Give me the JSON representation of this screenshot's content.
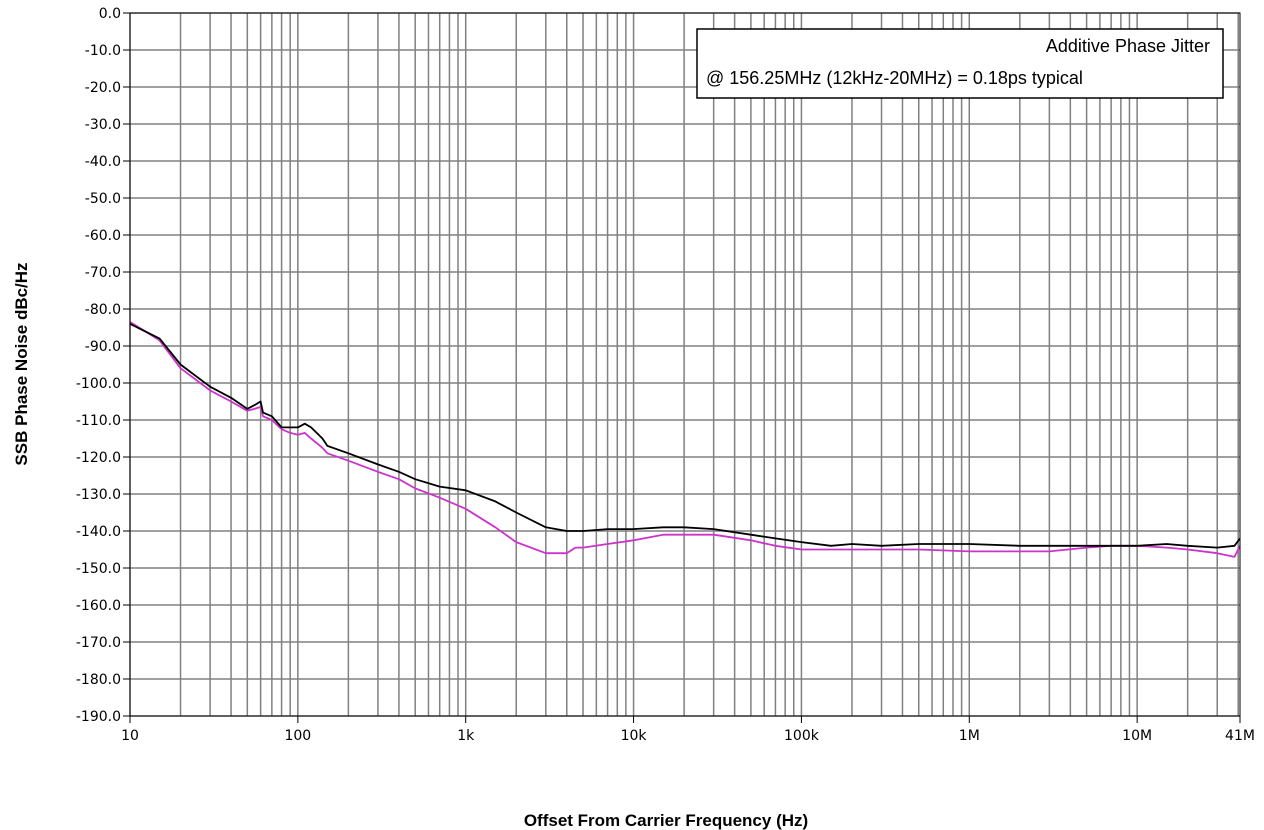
{
  "chart_data": {
    "type": "line",
    "title": "",
    "xlabel": "Offset From Carrier Frequency (Hz)",
    "ylabel": "SSB Phase Noise dBc/Hz",
    "x_scale": "log",
    "xlim": [
      10,
      41000000
    ],
    "ylim": [
      -190,
      0
    ],
    "y_ticks": [
      0,
      -10,
      -20,
      -30,
      -40,
      -50,
      -60,
      -70,
      -80,
      -90,
      -100,
      -110,
      -120,
      -130,
      -140,
      -150,
      -160,
      -170,
      -180,
      -190
    ],
    "y_tick_labels": [
      "0.0",
      "-10.0",
      "-20.0",
      "-30.0",
      "-40.0",
      "-50.0",
      "-60.0",
      "-70.0",
      "-80.0",
      "-90.0",
      "-100.0",
      "-110.0",
      "-120.0",
      "-130.0",
      "-140.0",
      "-150.0",
      "-160.0",
      "-170.0",
      "-180.0",
      "-190.0"
    ],
    "x_ticks": [
      10,
      100,
      1000,
      10000,
      100000,
      1000000,
      10000000,
      41000000
    ],
    "x_tick_labels": [
      "10",
      "100",
      "1k",
      "10k",
      "100k",
      "1M",
      "10M",
      "41M"
    ],
    "grid": true,
    "annotation": {
      "line1": "Additive Phase Jitter",
      "line2": "@ 156.25MHz (12kHz-20MHz) = 0.18ps typical"
    },
    "series": [
      {
        "color": "#000000",
        "x": [
          10,
          15,
          20,
          30,
          40,
          50,
          55,
          60,
          62,
          70,
          80,
          90,
          100,
          110,
          120,
          140,
          150,
          200,
          300,
          400,
          500,
          700,
          1000,
          1500,
          2000,
          3000,
          4000,
          5000,
          7000,
          10000,
          15000,
          20000,
          30000,
          50000,
          70000,
          100000,
          150000,
          200000,
          300000,
          500000,
          1000000,
          2000000,
          3000000,
          5000000,
          7000000,
          10000000,
          15000000,
          20000000,
          30000000,
          38000000,
          41000000
        ],
        "values": [
          -84,
          -88,
          -95,
          -101,
          -104,
          -107,
          -106,
          -105,
          -108,
          -109,
          -112,
          -112,
          -112,
          -111,
          -112,
          -115,
          -117,
          -119,
          -122,
          -124,
          -126,
          -128,
          -129,
          -132,
          -135,
          -139,
          -140,
          -140,
          -139.5,
          -139.5,
          -139,
          -139,
          -139.5,
          -141,
          -142,
          -143,
          -144,
          -143.5,
          -144,
          -143.5,
          -143.5,
          -144,
          -144,
          -144,
          -144,
          -144,
          -143.5,
          -144,
          -144.5,
          -144,
          -142
        ]
      },
      {
        "color": "#cc33cc",
        "x": [
          10,
          15,
          20,
          30,
          40,
          50,
          55,
          60,
          62,
          70,
          80,
          90,
          100,
          110,
          120,
          140,
          150,
          200,
          300,
          400,
          500,
          700,
          1000,
          1500,
          2000,
          3000,
          4000,
          4500,
          5000,
          7000,
          10000,
          15000,
          20000,
          30000,
          50000,
          70000,
          100000,
          150000,
          200000,
          300000,
          500000,
          1000000,
          2000000,
          3000000,
          5000000,
          7000000,
          10000000,
          15000000,
          20000000,
          30000000,
          38000000,
          41000000
        ],
        "values": [
          -83.5,
          -88.5,
          -96,
          -102,
          -105,
          -107.5,
          -107,
          -106.5,
          -109,
          -110,
          -112.5,
          -113.5,
          -114,
          -113.5,
          -115,
          -117.5,
          -119,
          -121,
          -124,
          -126,
          -128.5,
          -131,
          -134,
          -139,
          -143,
          -146,
          -146,
          -144.5,
          -144.5,
          -143.5,
          -142.5,
          -141,
          -141,
          -141,
          -142.5,
          -144,
          -145,
          -145,
          -145,
          -145,
          -145,
          -145.5,
          -145.5,
          -145.5,
          -144.5,
          -144,
          -144,
          -144.5,
          -145,
          -146,
          -147,
          -144
        ]
      }
    ]
  }
}
